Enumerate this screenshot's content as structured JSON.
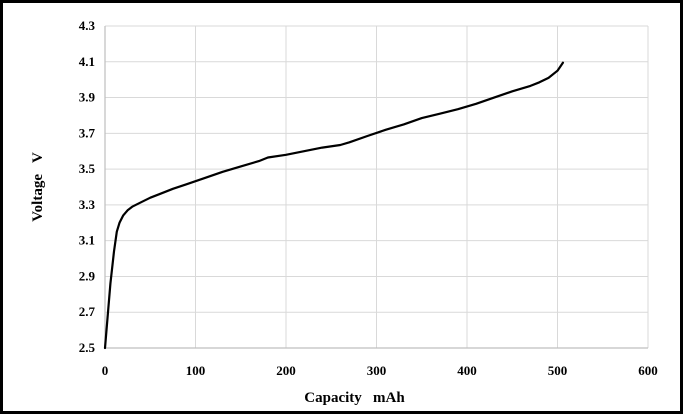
{
  "chart_data": {
    "type": "line",
    "title": "",
    "xlabel": "Capacity   mAh",
    "ylabel": "Voltage   V",
    "xlim": [
      0,
      600
    ],
    "ylim": [
      2.5,
      4.3
    ],
    "x_ticks": [
      0,
      100,
      200,
      300,
      400,
      500,
      600
    ],
    "y_ticks": [
      "2.5",
      "2.7",
      "2.9",
      "3.1",
      "3.3",
      "3.5",
      "3.7",
      "3.9",
      "4.1",
      "4.3"
    ],
    "grid": true,
    "legend": "none",
    "series": [
      {
        "color": "#000000",
        "x": [
          0,
          3,
          6,
          10,
          13,
          16,
          20,
          25,
          30,
          40,
          50,
          60,
          75,
          90,
          110,
          130,
          150,
          170,
          180,
          200,
          220,
          240,
          260,
          270,
          290,
          310,
          330,
          350,
          370,
          390,
          410,
          430,
          450,
          470,
          480,
          490,
          500,
          506
        ],
        "y": [
          2.5,
          2.68,
          2.86,
          3.04,
          3.15,
          3.2,
          3.24,
          3.27,
          3.29,
          3.315,
          3.34,
          3.36,
          3.39,
          3.415,
          3.45,
          3.485,
          3.515,
          3.545,
          3.565,
          3.58,
          3.6,
          3.62,
          3.635,
          3.65,
          3.685,
          3.72,
          3.75,
          3.785,
          3.81,
          3.835,
          3.865,
          3.9,
          3.935,
          3.965,
          3.985,
          4.01,
          4.05,
          4.095
        ]
      }
    ]
  }
}
